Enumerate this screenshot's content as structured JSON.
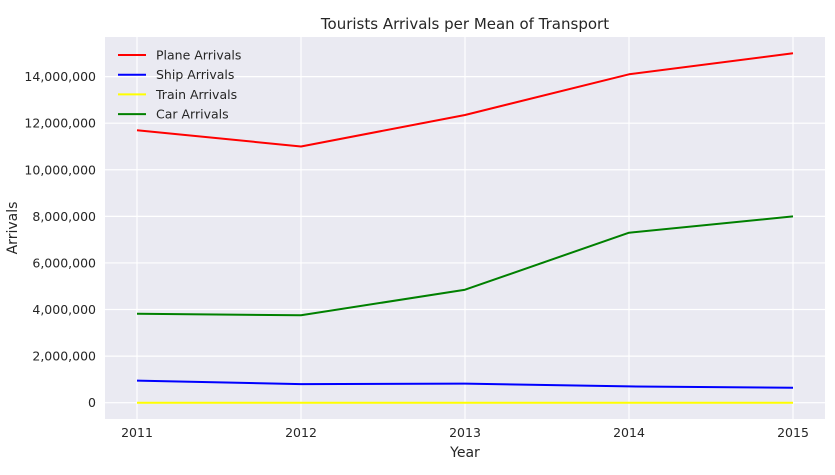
{
  "chart_data": {
    "type": "line",
    "title": "Tourists Arrivals per Mean of Transport",
    "xlabel": "Year",
    "ylabel": "Arrivals",
    "x": [
      2011,
      2012,
      2013,
      2014,
      2015
    ],
    "x_tick_labels": [
      "2011",
      "2012",
      "2013",
      "2014",
      "2015"
    ],
    "ylim": [
      -700000,
      15700000
    ],
    "y_ticks": [
      0,
      2000000,
      4000000,
      6000000,
      8000000,
      10000000,
      12000000,
      14000000
    ],
    "y_tick_labels": [
      "0",
      "2,000,000",
      "4,000,000",
      "6,000,000",
      "8,000,000",
      "10,000,000",
      "12,000,000",
      "14,000,000"
    ],
    "grid": true,
    "legend_position": "top-left",
    "series": [
      {
        "name": "Plane Arrivals",
        "color": "#ff0000",
        "values": [
          11700000,
          11000000,
          12350000,
          14100000,
          15000000
        ]
      },
      {
        "name": "Ship Arrivals",
        "color": "#0000ff",
        "values": [
          950000,
          800000,
          820000,
          700000,
          640000
        ]
      },
      {
        "name": "Train Arrivals",
        "color": "#ffff00",
        "values": [
          0,
          0,
          0,
          0,
          0
        ]
      },
      {
        "name": "Car Arrivals",
        "color": "#008000",
        "values": [
          3820000,
          3750000,
          4850000,
          7300000,
          8000000
        ]
      }
    ]
  },
  "style": {
    "plot_background": "#eaeaf2",
    "grid_color": "#ffffff",
    "text_color": "#262626"
  }
}
